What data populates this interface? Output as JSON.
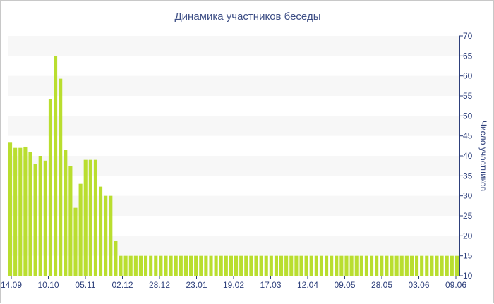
{
  "chart_data": {
    "type": "bar",
    "title": "Динамика участников беседы",
    "ylabel": "Число участников",
    "xlabel": "",
    "ylim": [
      10,
      70
    ],
    "yticks": [
      10,
      15,
      20,
      25,
      30,
      35,
      40,
      45,
      50,
      55,
      60,
      65,
      70
    ],
    "x_tick_labels": [
      "14.09",
      "10.10",
      "05.11",
      "02.12",
      "28.12",
      "23.01",
      "19.02",
      "17.03",
      "12.04",
      "09.05",
      "28.05",
      "03.06",
      "09.06"
    ],
    "grid": "horizontal alternating bands",
    "bar_color": "#b9de2f",
    "values": [
      43.3,
      42,
      42,
      42.3,
      41,
      38,
      40,
      38.8,
      54.2,
      65,
      59.3,
      41.5,
      37.5,
      27,
      33,
      39,
      39,
      39,
      32.3,
      30,
      30,
      18.8,
      15,
      15,
      15,
      15,
      15,
      15,
      15,
      15,
      15,
      15,
      15,
      15,
      15,
      15,
      15,
      15,
      15,
      15,
      15,
      15,
      15,
      15,
      15,
      15,
      15,
      15,
      15,
      15,
      15,
      15,
      15,
      15,
      15,
      15,
      15,
      15,
      15,
      15,
      15,
      15,
      15,
      15,
      15,
      15,
      15,
      15,
      15,
      15,
      15,
      15,
      15,
      15,
      15,
      15,
      15,
      15,
      15,
      15,
      15,
      15,
      15,
      15,
      15,
      15,
      15,
      15,
      15,
      15
    ]
  }
}
